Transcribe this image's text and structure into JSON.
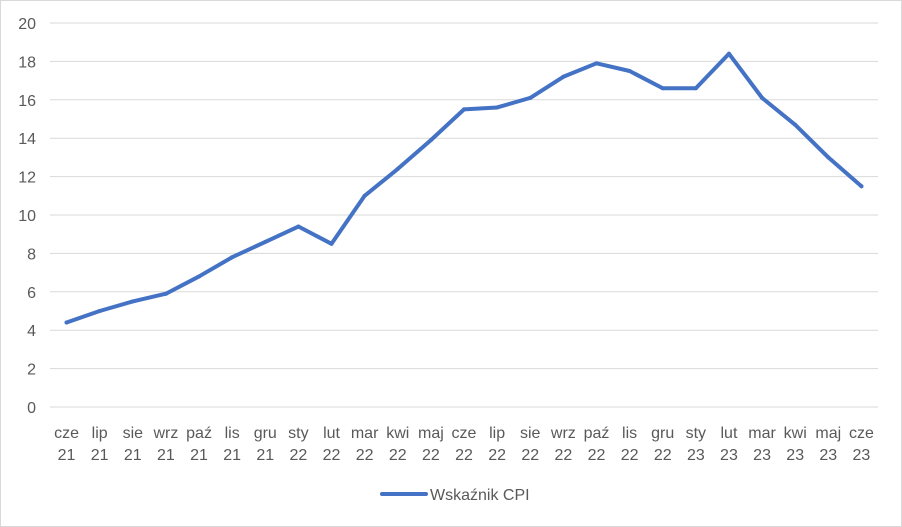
{
  "chart_data": {
    "type": "line",
    "title": "",
    "xlabel": "",
    "ylabel": "",
    "ylim": [
      0,
      20
    ],
    "yticks": [
      0,
      2,
      4,
      6,
      8,
      10,
      12,
      14,
      16,
      18,
      20
    ],
    "grid": true,
    "legend_position": "bottom",
    "categories": [
      [
        "cze",
        "21"
      ],
      [
        "lip",
        "21"
      ],
      [
        "sie",
        "21"
      ],
      [
        "wrz",
        "21"
      ],
      [
        "paź",
        "21"
      ],
      [
        "lis",
        "21"
      ],
      [
        "gru",
        "21"
      ],
      [
        "sty",
        "22"
      ],
      [
        "lut",
        "22"
      ],
      [
        "mar",
        "22"
      ],
      [
        "kwi",
        "22"
      ],
      [
        "maj",
        "22"
      ],
      [
        "cze",
        "22"
      ],
      [
        "lip",
        "22"
      ],
      [
        "sie",
        "22"
      ],
      [
        "wrz",
        "22"
      ],
      [
        "paź",
        "22"
      ],
      [
        "lis",
        "22"
      ],
      [
        "gru",
        "22"
      ],
      [
        "sty",
        "23"
      ],
      [
        "lut",
        "23"
      ],
      [
        "mar",
        "23"
      ],
      [
        "kwi",
        "23"
      ],
      [
        "maj",
        "23"
      ],
      [
        "cze",
        "23"
      ]
    ],
    "series": [
      {
        "name": "Wskaźnik CPI",
        "color": "#4472c4",
        "values": [
          4.4,
          5.0,
          5.5,
          5.9,
          6.8,
          7.8,
          8.6,
          9.4,
          8.5,
          11.0,
          12.4,
          13.9,
          15.5,
          15.6,
          16.1,
          17.2,
          17.9,
          17.5,
          16.6,
          16.6,
          18.4,
          16.1,
          14.7,
          13.0,
          11.5
        ]
      }
    ]
  }
}
